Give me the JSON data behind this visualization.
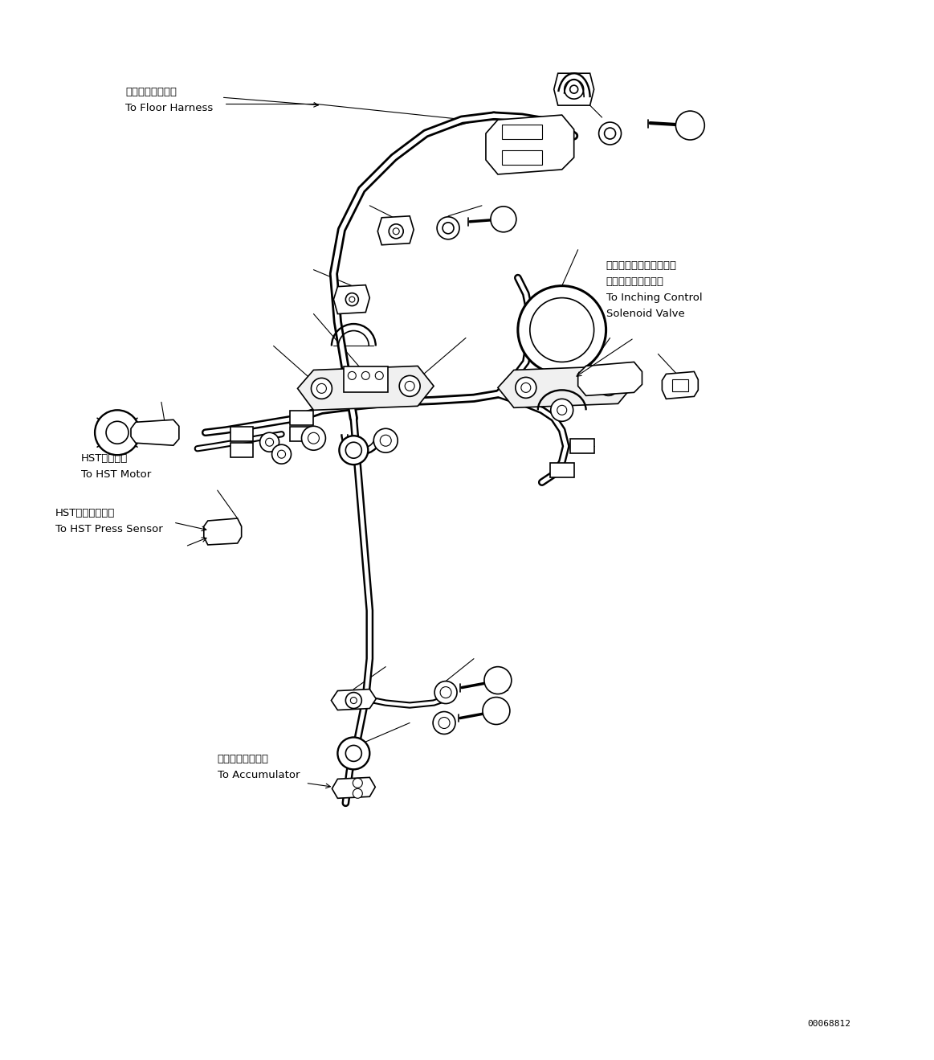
{
  "background_color": "#ffffff",
  "fig_width": 11.63,
  "fig_height": 13.19,
  "dpi": 100,
  "part_number": "00068812",
  "label_floor_harness_jp": "フロアハーネスへ",
  "label_floor_harness_en": "To Floor Harness",
  "label_inching_jp1": "インチングコントロール",
  "label_inching_jp2": "ソレノイドバルブへ",
  "label_inching_en1": "To Inching Control",
  "label_inching_en2": "Solenoid Valve",
  "label_hst_motor_jp": "HSTモータへ",
  "label_hst_motor_en": "To HST Motor",
  "label_hst_sensor_jp": "HST油圧センサへ",
  "label_hst_sensor_en": "To HST Press Sensor",
  "label_accum_jp": "アキュムレータへ",
  "label_accum_en": "To Accumulator",
  "lc": "#000000",
  "lw_harness": 3.5,
  "lw_detail": 1.2,
  "lw_thin": 0.8
}
